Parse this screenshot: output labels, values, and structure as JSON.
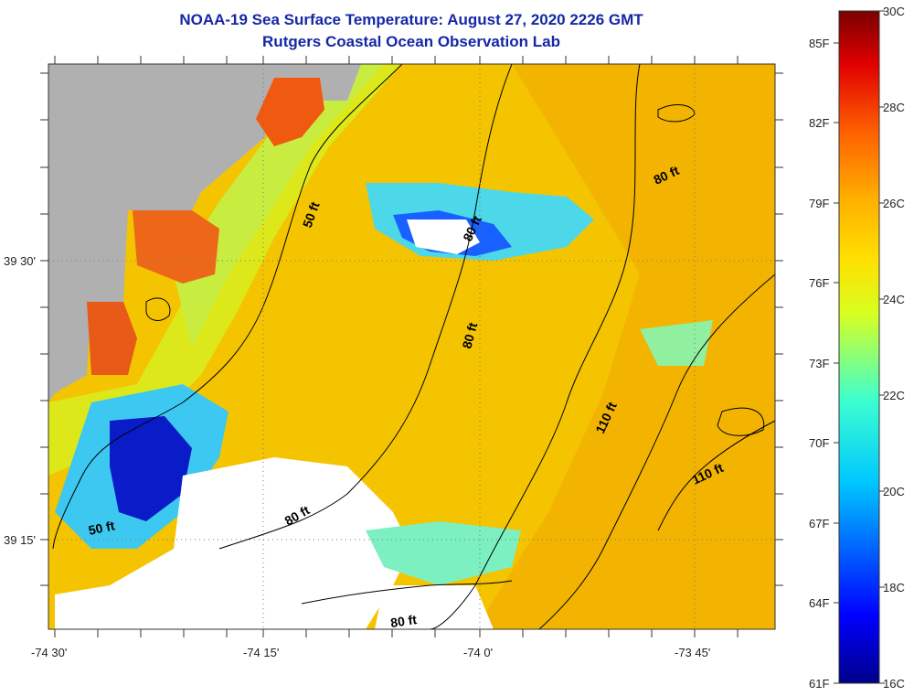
{
  "title": {
    "line1": "NOAA-19 Sea Surface Temperature:  August 27, 2020 2226 GMT",
    "line2": "Rutgers Coastal Ocean Observation Lab"
  },
  "map": {
    "lon_labels": [
      "-74 30'",
      "-74 15'",
      "-74 0'",
      "-73 45'"
    ],
    "lat_labels": [
      "39 30'",
      "39 15'"
    ],
    "contour_labels": [
      "50 ft",
      "80 ft",
      "80 ft",
      "110 ft",
      "110 ft",
      "50 ft",
      "80 ft",
      "80 ft",
      "80 ft"
    ],
    "colors": {
      "land": "#b0b0b0",
      "cloud": "#ffffff",
      "dominant_sst": "#f5c400"
    }
  },
  "colorbar": {
    "celsius_labels": [
      "30C",
      "28C",
      "26C",
      "24C",
      "22C",
      "20C",
      "18C",
      "16C"
    ],
    "fahrenheit_labels": [
      "85F",
      "82F",
      "79F",
      "76F",
      "73F",
      "70F",
      "67F",
      "64F",
      "61F"
    ]
  }
}
